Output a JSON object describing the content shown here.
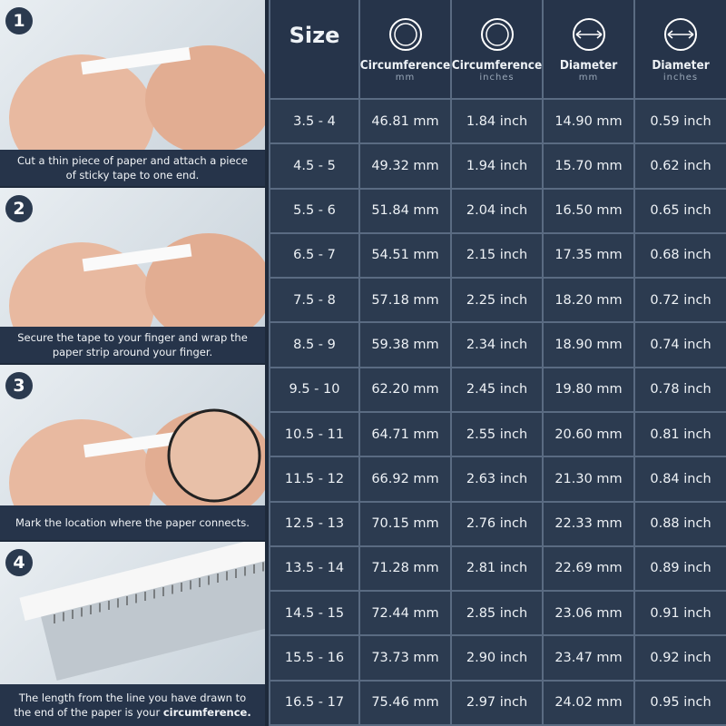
{
  "steps": [
    {
      "number": "1",
      "caption": "Cut a thin piece of paper and attach a piece of sticky tape to one end."
    },
    {
      "number": "2",
      "caption": "Secure the tape to your finger and wrap the paper strip around your finger."
    },
    {
      "number": "3",
      "caption": "Mark the location where the paper connects."
    },
    {
      "number": "4",
      "caption": "The length from the line you have drawn to the end of the paper is your ",
      "emphasis": "circumference."
    }
  ],
  "table": {
    "header": [
      {
        "title": "Size"
      },
      {
        "title": "Circumference",
        "unit": "mm"
      },
      {
        "title": "Circumference",
        "unit": "inches"
      },
      {
        "title": "Diameter",
        "unit": "mm"
      },
      {
        "title": "Diameter",
        "unit": "inches"
      }
    ],
    "rows": [
      [
        "3.5 - 4",
        "46.81 mm",
        "1.84 inch",
        "14.90 mm",
        "0.59 inch"
      ],
      [
        "4.5 - 5",
        "49.32 mm",
        "1.94 inch",
        "15.70 mm",
        "0.62 inch"
      ],
      [
        "5.5 - 6",
        "51.84 mm",
        "2.04 inch",
        "16.50 mm",
        "0.65 inch"
      ],
      [
        "6.5 - 7",
        "54.51 mm",
        "2.15 inch",
        "17.35 mm",
        "0.68 inch"
      ],
      [
        "7.5 - 8",
        "57.18 mm",
        "2.25 inch",
        "18.20 mm",
        "0.72 inch"
      ],
      [
        "8.5 - 9",
        "59.38 mm",
        "2.34 inch",
        "18.90 mm",
        "0.74 inch"
      ],
      [
        "9.5 - 10",
        "62.20 mm",
        "2.45 inch",
        "19.80 mm",
        "0.78 inch"
      ],
      [
        "10.5 - 11",
        "64.71 mm",
        "2.55 inch",
        "20.60 mm",
        "0.81 inch"
      ],
      [
        "11.5 - 12",
        "66.92 mm",
        "2.63 inch",
        "21.30 mm",
        "0.84 inch"
      ],
      [
        "12.5 - 13",
        "70.15 mm",
        "2.76 inch",
        "22.33 mm",
        "0.88 inch"
      ],
      [
        "13.5 - 14",
        "71.28 mm",
        "2.81 inch",
        "22.69 mm",
        "0.89 inch"
      ],
      [
        "14.5 - 15",
        "72.44 mm",
        "2.85 inch",
        "23.06 mm",
        "0.91 inch"
      ],
      [
        "15.5 - 16",
        "73.73 mm",
        "2.90 inch",
        "23.47 mm",
        "0.92 inch"
      ],
      [
        "16.5 - 17",
        "75.46 mm",
        "2.97 inch",
        "24.02 mm",
        "0.95 inch"
      ]
    ]
  }
}
